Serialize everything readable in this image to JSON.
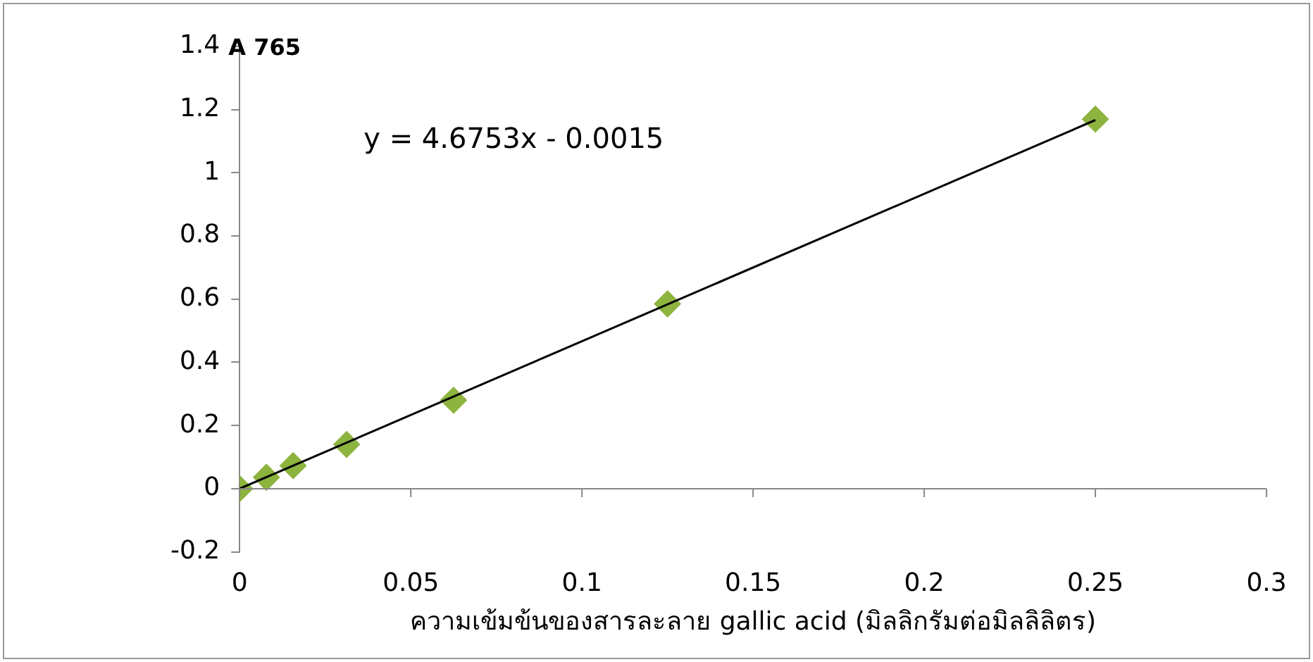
{
  "chart_data": {
    "type": "scatter",
    "ylabel": "A 765",
    "xlabel": "ความเข้มข้นของสารละลาย gallic acid (มิลลิกรัมต่อมิลลิลิตร)",
    "annotations": [
      "y = 4.6753x - 0.0015"
    ],
    "xlim": [
      0,
      0.3
    ],
    "xticks": [
      0,
      0.05,
      0.1,
      0.15,
      0.2,
      0.25,
      0.3
    ],
    "ylim": [
      -0.2,
      1.4
    ],
    "yticks": [
      -0.2,
      0,
      0.2,
      0.4,
      0.6,
      0.8,
      1,
      1.2,
      1.4
    ],
    "series": [
      {
        "type": "scatter",
        "marker": "diamond",
        "color": "#8db43e",
        "x": [
          0,
          0.0078125,
          0.015625,
          0.03125,
          0.0625,
          0.125,
          0.25
        ],
        "values": [
          0,
          0.036,
          0.073,
          0.14,
          0.28,
          0.585,
          1.17
        ]
      },
      {
        "type": "line",
        "marker": "none",
        "color": "#000000",
        "x": [
          0,
          0.25
        ],
        "values": [
          0,
          1.167
        ]
      }
    ]
  }
}
